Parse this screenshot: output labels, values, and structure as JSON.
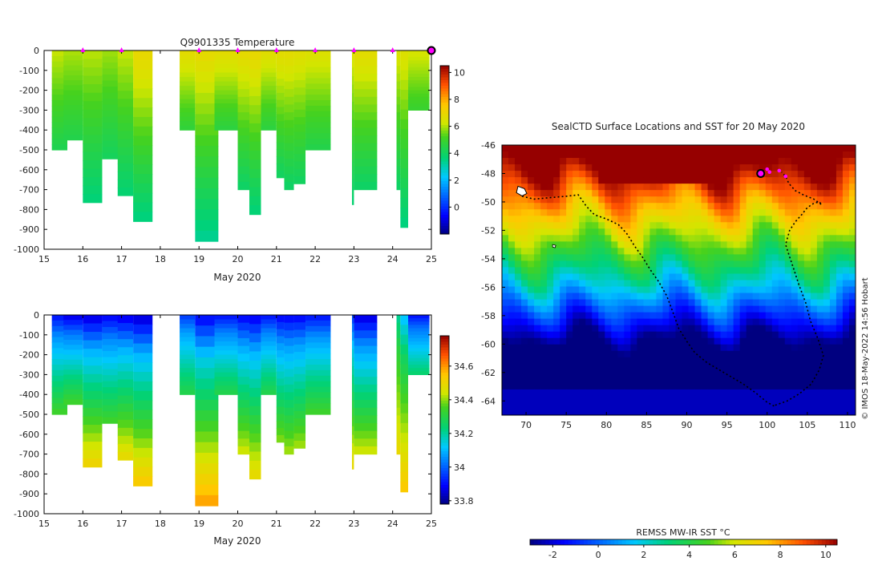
{
  "chart_data": [
    {
      "type": "heatmap",
      "id": "temperature-section",
      "title": "Q9901335  Temperature",
      "xlabel": "May 2020",
      "ylabel": "",
      "xlim": [
        15,
        25
      ],
      "ylim": [
        -1000,
        0
      ],
      "xticks": [
        "15",
        "16",
        "17",
        "18",
        "19",
        "20",
        "21",
        "22",
        "23",
        "24",
        "25"
      ],
      "yticks": [
        "0",
        "-100",
        "-200",
        "-300",
        "-400",
        "-500",
        "-600",
        "-700",
        "-800",
        "-900",
        "-1000"
      ],
      "colorbar": {
        "range": [
          -2,
          10.5
        ],
        "ticks": [
          "0",
          "2",
          "4",
          "6",
          "8",
          "10"
        ],
        "colormap": "jet"
      },
      "surface_markers_day": [
        16,
        17,
        19,
        20,
        21,
        22,
        23,
        24
      ],
      "latest_marker_day": 25,
      "profiles": [
        {
          "x0": 15.2,
          "x1": 15.6,
          "depth": 500,
          "surf": 6.2,
          "deep": 4.3
        },
        {
          "x0": 15.5,
          "x1": 16.0,
          "depth": 450,
          "surf": 6.0,
          "deep": 4.4
        },
        {
          "x0": 16.0,
          "x1": 16.5,
          "depth": 765,
          "surf": 6.1,
          "deep": 3.6
        },
        {
          "x0": 16.5,
          "x1": 17.0,
          "depth": 545,
          "surf": 5.9,
          "deep": 4.1
        },
        {
          "x0": 16.9,
          "x1": 17.3,
          "depth": 730,
          "surf": 6.2,
          "deep": 3.7
        },
        {
          "x0": 17.3,
          "x1": 17.8,
          "depth": 860,
          "surf": 7.0,
          "deep": 3.5
        },
        {
          "x0": 18.5,
          "x1": 18.9,
          "depth": 400,
          "surf": 6.8,
          "deep": 4.7
        },
        {
          "x0": 18.9,
          "x1": 19.5,
          "depth": 960,
          "surf": 6.9,
          "deep": 3.3
        },
        {
          "x0": 19.4,
          "x1": 20.0,
          "depth": 400,
          "surf": 6.8,
          "deep": 4.6
        },
        {
          "x0": 20.0,
          "x1": 20.3,
          "depth": 700,
          "surf": 6.9,
          "deep": 3.9
        },
        {
          "x0": 20.3,
          "x1": 20.6,
          "depth": 825,
          "surf": 7.0,
          "deep": 3.6
        },
        {
          "x0": 20.6,
          "x1": 21.0,
          "depth": 400,
          "surf": 6.7,
          "deep": 4.6
        },
        {
          "x0": 21.0,
          "x1": 21.2,
          "depth": 640,
          "surf": 6.8,
          "deep": 4.0
        },
        {
          "x0": 21.2,
          "x1": 21.45,
          "depth": 700,
          "surf": 6.8,
          "deep": 3.9
        },
        {
          "x0": 21.45,
          "x1": 21.75,
          "depth": 670,
          "surf": 6.7,
          "deep": 4.0
        },
        {
          "x0": 21.75,
          "x1": 22.4,
          "depth": 500,
          "surf": 6.6,
          "deep": 4.4
        },
        {
          "x0": 22.95,
          "x1": 23.0,
          "depth": 775,
          "surf": 6.5,
          "deep": 3.7
        },
        {
          "x0": 23.0,
          "x1": 23.6,
          "depth": 700,
          "surf": 6.8,
          "deep": 3.9
        },
        {
          "x0": 24.1,
          "x1": 24.2,
          "depth": 700,
          "surf": 6.5,
          "deep": 3.9
        },
        {
          "x0": 24.2,
          "x1": 24.4,
          "depth": 890,
          "surf": 6.6,
          "deep": 3.5
        },
        {
          "x0": 24.4,
          "x1": 24.95,
          "depth": 300,
          "surf": 6.4,
          "deep": 4.9
        }
      ]
    },
    {
      "type": "heatmap",
      "id": "salinity-section",
      "title": "",
      "xlabel": "May 2020",
      "ylabel": "",
      "xlim": [
        15,
        25
      ],
      "ylim": [
        -1000,
        0
      ],
      "xticks": [
        "15",
        "16",
        "17",
        "18",
        "19",
        "20",
        "21",
        "22",
        "23",
        "24",
        "25"
      ],
      "yticks": [
        "0",
        "-100",
        "-200",
        "-300",
        "-400",
        "-500",
        "-600",
        "-700",
        "-800",
        "-900",
        "-1000"
      ],
      "colorbar": {
        "range": [
          33.78,
          34.78
        ],
        "ticks": [
          "33.8",
          "34",
          "34.2",
          "34.4",
          "34.6"
        ],
        "colormap": "jet"
      },
      "profiles": [
        {
          "x0": 15.2,
          "x1": 15.6,
          "depth": 500,
          "surf": 33.9,
          "deep": 34.35
        },
        {
          "x0": 15.5,
          "x1": 16.0,
          "depth": 450,
          "surf": 33.86,
          "deep": 34.35
        },
        {
          "x0": 16.0,
          "x1": 16.5,
          "depth": 765,
          "surf": 33.85,
          "deep": 34.52
        },
        {
          "x0": 16.5,
          "x1": 17.0,
          "depth": 545,
          "surf": 33.88,
          "deep": 34.35
        },
        {
          "x0": 16.9,
          "x1": 17.3,
          "depth": 730,
          "surf": 33.86,
          "deep": 34.5
        },
        {
          "x0": 17.3,
          "x1": 17.8,
          "depth": 860,
          "surf": 33.84,
          "deep": 34.55
        },
        {
          "x0": 18.5,
          "x1": 18.9,
          "depth": 400,
          "surf": 33.95,
          "deep": 34.3
        },
        {
          "x0": 18.9,
          "x1": 19.5,
          "depth": 960,
          "surf": 33.88,
          "deep": 34.6
        },
        {
          "x0": 19.4,
          "x1": 20.0,
          "depth": 400,
          "surf": 33.9,
          "deep": 34.3
        },
        {
          "x0": 20.0,
          "x1": 20.3,
          "depth": 700,
          "surf": 33.88,
          "deep": 34.45
        },
        {
          "x0": 20.3,
          "x1": 20.6,
          "depth": 825,
          "surf": 33.87,
          "deep": 34.5
        },
        {
          "x0": 20.6,
          "x1": 21.0,
          "depth": 400,
          "surf": 33.9,
          "deep": 34.3
        },
        {
          "x0": 21.0,
          "x1": 21.2,
          "depth": 640,
          "surf": 33.88,
          "deep": 34.4
        },
        {
          "x0": 21.2,
          "x1": 21.45,
          "depth": 700,
          "surf": 33.88,
          "deep": 34.42
        },
        {
          "x0": 21.45,
          "x1": 21.75,
          "depth": 670,
          "surf": 33.88,
          "deep": 34.42
        },
        {
          "x0": 21.75,
          "x1": 22.4,
          "depth": 500,
          "surf": 33.9,
          "deep": 34.35
        },
        {
          "x0": 22.95,
          "x1": 23.0,
          "depth": 775,
          "surf": 33.95,
          "deep": 34.5
        },
        {
          "x0": 23.0,
          "x1": 23.6,
          "depth": 700,
          "surf": 33.85,
          "deep": 34.45
        },
        {
          "x0": 24.1,
          "x1": 24.2,
          "depth": 700,
          "surf": 34.2,
          "deep": 34.5
        },
        {
          "x0": 24.2,
          "x1": 24.4,
          "depth": 890,
          "surf": 34.1,
          "deep": 34.55
        },
        {
          "x0": 24.4,
          "x1": 24.95,
          "depth": 300,
          "surf": 33.9,
          "deep": 34.25
        }
      ]
    },
    {
      "type": "heatmap",
      "id": "sst-map",
      "title": "SealCTD Surface Locations and SST for 20 May 2020",
      "xlabel": "",
      "ylabel": "",
      "xlim": [
        67,
        111
      ],
      "ylim": [
        -65,
        -46
      ],
      "xticks": [
        "70",
        "75",
        "80",
        "85",
        "90",
        "95",
        "100",
        "105",
        "110"
      ],
      "yticks": [
        "-46",
        "-48",
        "-50",
        "-52",
        "-54",
        "-56",
        "-58",
        "-60",
        "-62",
        "-64"
      ],
      "colorbar": {
        "label": "REMSS MW-IR SST °C",
        "range": [
          -3,
          10.5
        ],
        "ticks": [
          "-2",
          "0",
          "2",
          "4",
          "6",
          "8",
          "10"
        ],
        "colormap": "jet"
      },
      "credit": "© IMOS 18-May-2022 14:56 Hobart",
      "track_west": [
        [
          69.5,
          -49.6
        ],
        [
          71,
          -49.8
        ],
        [
          73,
          -49.7
        ],
        [
          75,
          -49.6
        ],
        [
          76.5,
          -49.5
        ],
        [
          77.5,
          -50.3
        ],
        [
          78.5,
          -50.9
        ],
        [
          80,
          -51.2
        ],
        [
          81.5,
          -51.6
        ],
        [
          82.5,
          -52.2
        ],
        [
          83.5,
          -53.1
        ],
        [
          84.5,
          -53.9
        ],
        [
          85.5,
          -54.8
        ],
        [
          86.5,
          -55.6
        ],
        [
          87.5,
          -56.6
        ],
        [
          88.3,
          -57.8
        ],
        [
          89,
          -58.9
        ],
        [
          90,
          -59.8
        ],
        [
          91,
          -60.6
        ],
        [
          92.5,
          -61.3
        ],
        [
          94,
          -61.8
        ],
        [
          95.5,
          -62.3
        ],
        [
          97,
          -62.8
        ],
        [
          98.5,
          -63.4
        ],
        [
          100,
          -64.1
        ],
        [
          101,
          -64.4
        ]
      ],
      "track_east": [
        [
          101,
          -64.3
        ],
        [
          102.5,
          -64.0
        ],
        [
          104,
          -63.5
        ],
        [
          105.5,
          -62.8
        ],
        [
          106.5,
          -61.8
        ],
        [
          107,
          -60.8
        ],
        [
          106.3,
          -59.6
        ],
        [
          105.4,
          -58.4
        ],
        [
          104.8,
          -57.1
        ],
        [
          104,
          -55.9
        ],
        [
          103.3,
          -54.7
        ],
        [
          102.7,
          -53.7
        ],
        [
          102.3,
          -53
        ],
        [
          102.8,
          -52
        ],
        [
          103.5,
          -51.4
        ],
        [
          104.3,
          -50.9
        ],
        [
          105,
          -50.4
        ],
        [
          105.8,
          -50.1
        ],
        [
          106.5,
          -50.0
        ],
        [
          106.8,
          -50.2
        ],
        [
          105.8,
          -49.8
        ],
        [
          104.5,
          -49.5
        ],
        [
          103.5,
          -49.2
        ],
        [
          102.7,
          -48.7
        ],
        [
          102.3,
          -48.2
        ],
        [
          101.8,
          -47.9
        ]
      ],
      "magenta_points": [
        [
          100.0,
          -47.7
        ],
        [
          100.3,
          -47.9
        ],
        [
          101.5,
          -47.8
        ],
        [
          102.3,
          -48.2
        ]
      ],
      "latest_position": [
        99.2,
        -48.0
      ],
      "kerguelen": [
        69.6,
        -49.3
      ],
      "heard_island": [
        73.5,
        -53.1
      ]
    }
  ]
}
